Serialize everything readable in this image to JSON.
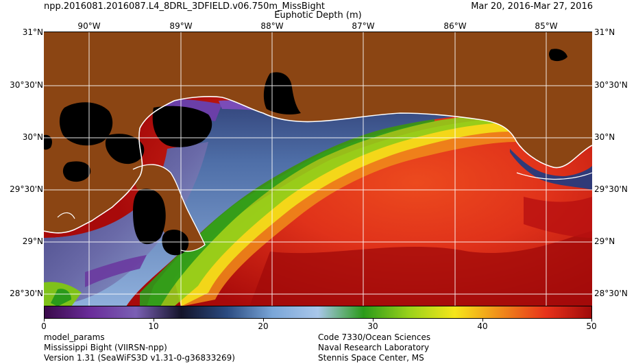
{
  "header": {
    "product": "npp.2016081.2016087.L4_8DRL_3DFIELD.v06.750m_MissBight",
    "date_range": "Mar 20, 2016-Mar 27, 2016",
    "map_title": "Euphotic Depth (m)"
  },
  "map": {
    "lon_labels": [
      "90°W",
      "89°W",
      "88°W",
      "87°W",
      "86°W",
      "85°W"
    ],
    "lat_labels": [
      "31°N",
      "30°30'N",
      "30°N",
      "29°30'N",
      "29°N",
      "28°30'N"
    ],
    "colors": {
      "land": "#8B4513",
      "inland_water": "#000000",
      "coastline": "#ffffff",
      "graticule": "#ffffff"
    }
  },
  "colorbar": {
    "ticks": [
      "0",
      "10",
      "20",
      "30",
      "40",
      "50"
    ],
    "min": 0,
    "max": 50,
    "stops": [
      "#3a0a4a",
      "#6a2c9a",
      "#7a5fb4",
      "#14142a",
      "#2a4a80",
      "#7aa6d8",
      "#a9c7ea",
      "#2a9a1a",
      "#9ad21a",
      "#f5e61a",
      "#f08c1a",
      "#e8321a",
      "#a00a0a"
    ]
  },
  "footer": {
    "left": [
      "model_params",
      "Mississippi Bight (VIIRSN-npp)",
      "Version 1.31 (SeaWiFS3D v1.31-0-g36833269)"
    ],
    "right": [
      "Code 7330/Ocean Sciences",
      "Naval Research Laboratory",
      "Stennis Space Center, MS"
    ]
  }
}
